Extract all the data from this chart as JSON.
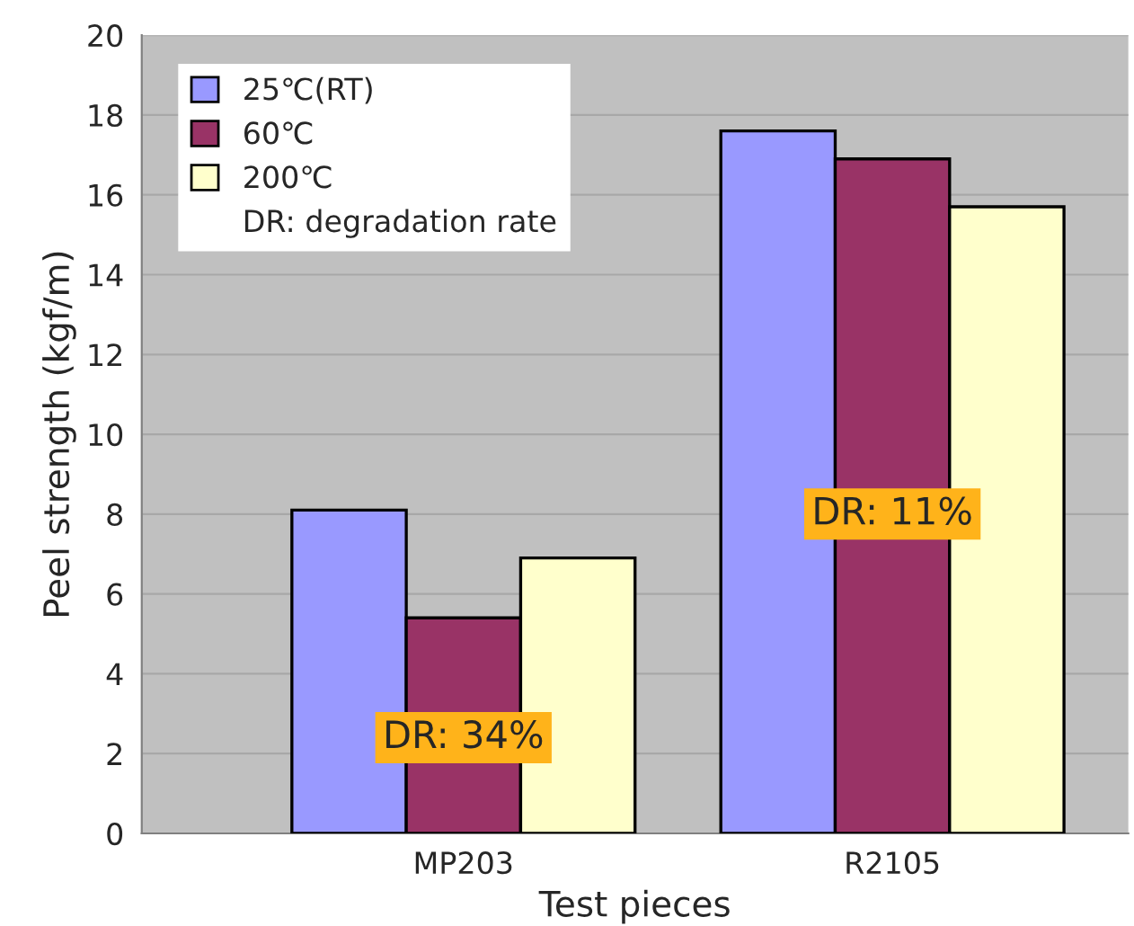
{
  "chart_data": {
    "type": "bar",
    "xlabel": "Test pieces",
    "ylabel": "Peel strength (kgf/m)",
    "categories": [
      "MP203",
      "R2105"
    ],
    "series": [
      {
        "name": "25℃(RT)",
        "color": "#9999ff",
        "values": [
          8.1,
          17.6
        ]
      },
      {
        "name": "60℃",
        "color": "#993366",
        "values": [
          5.4,
          16.9
        ]
      },
      {
        "name": "200℃",
        "color": "#ffffcc",
        "values": [
          6.9,
          15.7
        ]
      }
    ],
    "ylim": [
      0,
      20
    ],
    "yticks": [
      0,
      2,
      4,
      6,
      8,
      10,
      12,
      14,
      16,
      18,
      20
    ],
    "grid": "y",
    "legend": "top left",
    "annotations": [
      "DR: degradation rate",
      "DR: 34%",
      "DR: 11%"
    ]
  }
}
